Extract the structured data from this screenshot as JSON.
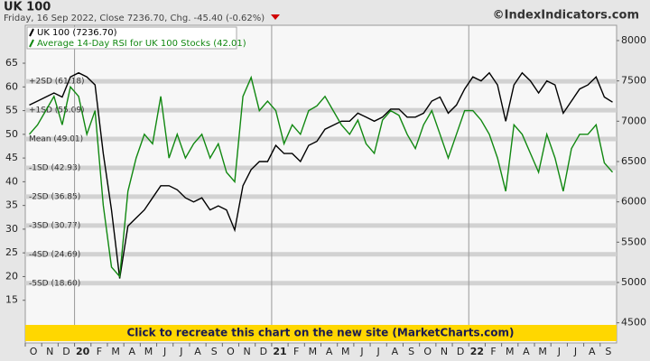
{
  "chart_data": {
    "type": "line",
    "title": "UK 100",
    "subtitle": "Friday, 16 Sep 2022, Close 7236.70, Chg. -45.40 (-0.62%)",
    "watermark": "©IndexIndicators.com",
    "banner": "Click to recreate this chart on the new site (MarketCharts.com)",
    "categories": [
      "O",
      null,
      "N",
      null,
      "D",
      null,
      "20",
      null,
      "F",
      null,
      "M",
      null,
      "A",
      null,
      "M",
      null,
      "J",
      null,
      "J",
      null,
      "A",
      null,
      "S",
      null,
      "O",
      null,
      "N",
      null,
      "D",
      null,
      "21",
      null,
      "F",
      null,
      "M",
      null,
      "A",
      null,
      "M",
      null,
      "J",
      null,
      "J",
      null,
      "A",
      null,
      "S",
      null,
      "O",
      null,
      "N",
      null,
      "D",
      null,
      "22",
      null,
      "F",
      null,
      "M",
      null,
      "A",
      null,
      "M",
      null,
      "J",
      null,
      "J",
      null,
      "A",
      null,
      "S",
      null
    ],
    "series": [
      {
        "name": "UK 100 (7236.70)",
        "color": "#000000",
        "axis": "y2",
        "values": [
          7200,
          7250,
          7300,
          7350,
          7300,
          7550,
          7600,
          7550,
          7450,
          6600,
          5900,
          5050,
          5700,
          5800,
          5900,
          6050,
          6200,
          6200,
          6150,
          6050,
          6000,
          6050,
          5900,
          5950,
          5900,
          5650,
          6200,
          6400,
          6500,
          6500,
          6700,
          6600,
          6600,
          6500,
          6700,
          6750,
          6900,
          6950,
          7000,
          7000,
          7100,
          7050,
          7000,
          7050,
          7150,
          7150,
          7050,
          7050,
          7100,
          7250,
          7300,
          7100,
          7200,
          7400,
          7550,
          7500,
          7600,
          7450,
          7000,
          7450,
          7600,
          7500,
          7350,
          7500,
          7450,
          7100,
          7250,
          7400,
          7450,
          7550,
          7300,
          7236.7
        ]
      },
      {
        "name": "Average 14-Day RSI for UK 100 Stocks (42.01)",
        "color": "#118811",
        "values": [
          50,
          52,
          55,
          58,
          52,
          60,
          58,
          50,
          55,
          35,
          22,
          20,
          38,
          45,
          50,
          48,
          58,
          45,
          50,
          45,
          48,
          50,
          45,
          48,
          42,
          40,
          58,
          62,
          55,
          57,
          55,
          48,
          52,
          50,
          55,
          56,
          58,
          55,
          52,
          50,
          53,
          48,
          46,
          53,
          55,
          54,
          50,
          47,
          52,
          55,
          50,
          45,
          50,
          55,
          55,
          53,
          50,
          45,
          38,
          52,
          50,
          46,
          42,
          50,
          45,
          38,
          47,
          50,
          50,
          52,
          44,
          42.01
        ]
      }
    ],
    "bands": [
      {
        "label": "+2SD (61.18)",
        "value": 61.18
      },
      {
        "label": "+1SD (55.09)",
        "value": 55.09
      },
      {
        "label": "Mean (49.01)",
        "value": 49.01
      },
      {
        "label": "-1SD (42.93)",
        "value": 42.93
      },
      {
        "label": "-2SD (36.85)",
        "value": 36.85
      },
      {
        "label": "-3SD (30.77)",
        "value": 30.77
      },
      {
        "label": "-4SD (24.69)",
        "value": 24.69
      },
      {
        "label": "-5SD (18.60)",
        "value": 18.6
      }
    ],
    "ylim": [
      6,
      73
    ],
    "yticks": [
      15,
      20,
      25,
      30,
      35,
      40,
      45,
      50,
      55,
      60,
      65
    ],
    "y2lim": [
      4250,
      8190
    ],
    "y2ticks": [
      4500,
      5000,
      5500,
      6000,
      6500,
      7000,
      7500,
      8000
    ],
    "legend": "top-left"
  }
}
